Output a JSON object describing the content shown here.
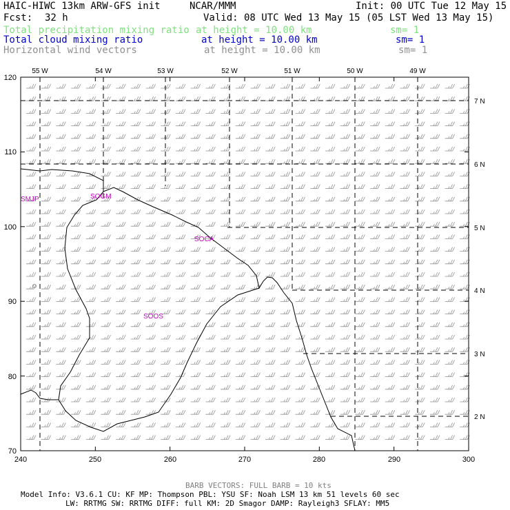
{
  "header": {
    "model_title": "HAIC-HIWC 13km ARW-GFS init",
    "center": "NCAR/MMM",
    "init": "Init: 00 UTC Tue 12 May 15",
    "fcst_label": "Fcst:",
    "fcst_value": "32 h",
    "valid": "Valid: 08 UTC Wed 13 May 15 (05 LST Wed 13 May 15)"
  },
  "fields": [
    {
      "name": "Total precipitation mixing ratio",
      "level": "at height = 10.00 km",
      "smooth": "sm= 1",
      "color": "#80e080"
    },
    {
      "name": "Total cloud mixing ratio",
      "level": "at height = 10.00 km",
      "smooth": "sm= 1",
      "color": "#0000c8"
    },
    {
      "name": "Horizontal wind vectors",
      "level": "at height = 10.00 km",
      "smooth": "sm= 1",
      "color": "#909090"
    }
  ],
  "axes": {
    "left_ticks": [
      "120",
      "110",
      "100",
      "90",
      "80",
      "70"
    ],
    "bottom_ticks": [
      "240",
      "250",
      "260",
      "270",
      "280",
      "290",
      "300"
    ],
    "top_ticks": [
      "55 W",
      "54 W",
      "53 W",
      "52 W",
      "51 W",
      "50 W",
      "49 W"
    ],
    "right_ticks": [
      "7 N",
      "6 N",
      "5 N",
      "4 N",
      "3 N",
      "2 N"
    ]
  },
  "stations": [
    {
      "id": "SMJP"
    },
    {
      "id": "SOGM"
    },
    {
      "id": "SOCA"
    },
    {
      "id": "SOOS"
    }
  ],
  "station_color": "#c000c0",
  "footer": {
    "barb_note": "BARB VECTORS:  FULL BARB = 10 kts",
    "line1": "Model Info: V3.6.1    CU: KF      MP: Thompson    PBL: YSU      SF: Noah LSM     13 km    51 levels   60 sec",
    "line2": "LW: RRTMG    SW: RRTMG   DIFF: full    KM: 2D Smagor DAMP: Rayleigh3  SFLAY: MM5"
  }
}
